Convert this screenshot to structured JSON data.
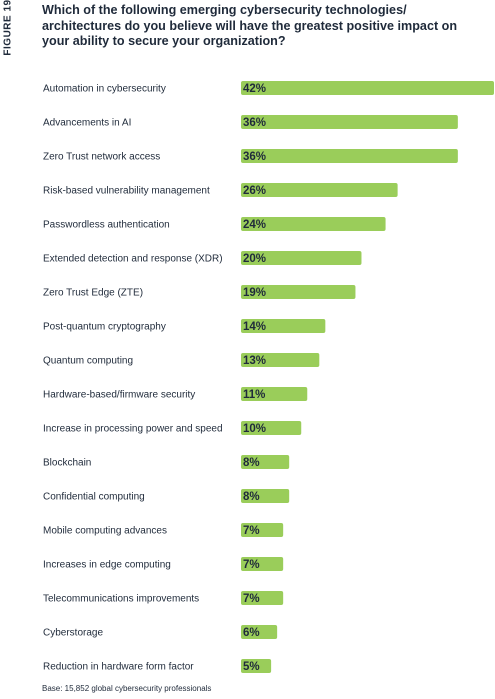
{
  "figure_label": "FIGURE 19",
  "chart_data": {
    "type": "bar",
    "orientation": "horizontal",
    "title": "Which of the following emerging cybersecurity technologies/ architectures do you believe will have the greatest positive impact on your ability to secure your organization?",
    "categories": [
      "Automation in cybersecurity",
      "Advancements in AI",
      "Zero Trust network access",
      "Risk-based vulnerability management",
      "Passwordless authentication",
      "Extended detection and response (XDR)",
      "Zero Trust Edge (ZTE)",
      "Post-quantum cryptography",
      "Quantum computing",
      "Hardware-based/firmware security",
      "Increase in processing power and speed",
      "Blockchain",
      "Confidential computing",
      "Mobile computing advances",
      "Increases in edge computing",
      "Telecommunications improvements",
      "Cyberstorage",
      "Reduction in hardware form factor"
    ],
    "values": [
      42,
      36,
      36,
      26,
      24,
      20,
      19,
      14,
      13,
      11,
      10,
      8,
      8,
      7,
      7,
      7,
      6,
      5
    ],
    "value_labels": [
      "42%",
      "36%",
      "36%",
      "26%",
      "24%",
      "20%",
      "19%",
      "14%",
      "13%",
      "11%",
      "10%",
      "8%",
      "8%",
      "7%",
      "7%",
      "7%",
      "6%",
      "5%"
    ],
    "xlim": [
      0,
      42
    ],
    "bar_color": "#9acd5a",
    "grid": false
  },
  "footnote": "Base: 15,852 global cybersecurity professionals"
}
